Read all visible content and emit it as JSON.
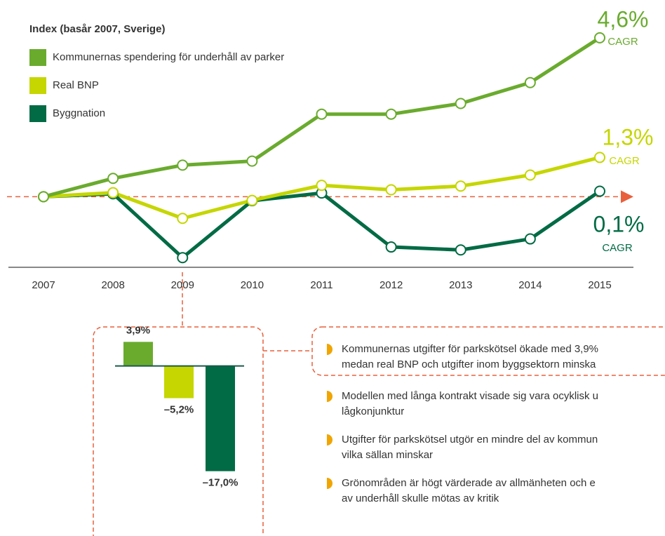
{
  "chart_data": [
    {
      "type": "line",
      "title": "Index (basår 2007, Sverige)",
      "categories": [
        "2007",
        "2008",
        "2009",
        "2010",
        "2011",
        "2012",
        "2013",
        "2014",
        "2015"
      ],
      "ylim": [
        80,
        145
      ],
      "reference": 100,
      "series": [
        {
          "name": "Kommunernas spendering för underhåll av parker",
          "color": "#6aab2e",
          "values": [
            100,
            105.0,
            108.6,
            109.7,
            122.5,
            122.5,
            125.4,
            131.1,
            143.3
          ],
          "annotation": {
            "value": "4,6%",
            "note": "CAGR"
          }
        },
        {
          "name": "Real BNP",
          "color": "#c5d600",
          "values": [
            100,
            101.1,
            94.1,
            99.0,
            103.1,
            101.9,
            102.9,
            105.9,
            110.7
          ],
          "annotation": {
            "value": "1,3%",
            "note": "CAGR"
          }
        },
        {
          "name": "Byggnation",
          "color": "#006b45",
          "values": [
            100,
            100.8,
            83.4,
            98.9,
            101.0,
            86.3,
            85.5,
            88.5,
            101.5
          ],
          "annotation": {
            "value": "0,1%",
            "note": "CAGR"
          }
        }
      ]
    },
    {
      "type": "bar",
      "categories": [
        null,
        null,
        null
      ],
      "values": [
        3.9,
        -5.2,
        -17.0
      ],
      "value_labels": [
        "3,9%",
        "–5,2%",
        "–17,0%"
      ],
      "colors": [
        "#6aab2e",
        "#c5d600",
        "#006b45"
      ],
      "ylim": [
        -17.5,
        4.5
      ]
    }
  ],
  "bullets": [
    [
      "Kommunernas utgifter för parkskötsel ökade med 3,9%",
      "medan real BNP och utgifter inom byggsektorn minska"
    ],
    [
      "Modellen med långa kontrakt visade sig vara ocyklisk u",
      "lågkonjunktur"
    ],
    [
      "Utgifter för parkskötsel utgör en mindre del av kommun",
      "vilka sällan minskar"
    ],
    [
      "Grönområden är högt värderade av allmänheten och e",
      "av underhåll skulle mötas av kritik"
    ]
  ]
}
